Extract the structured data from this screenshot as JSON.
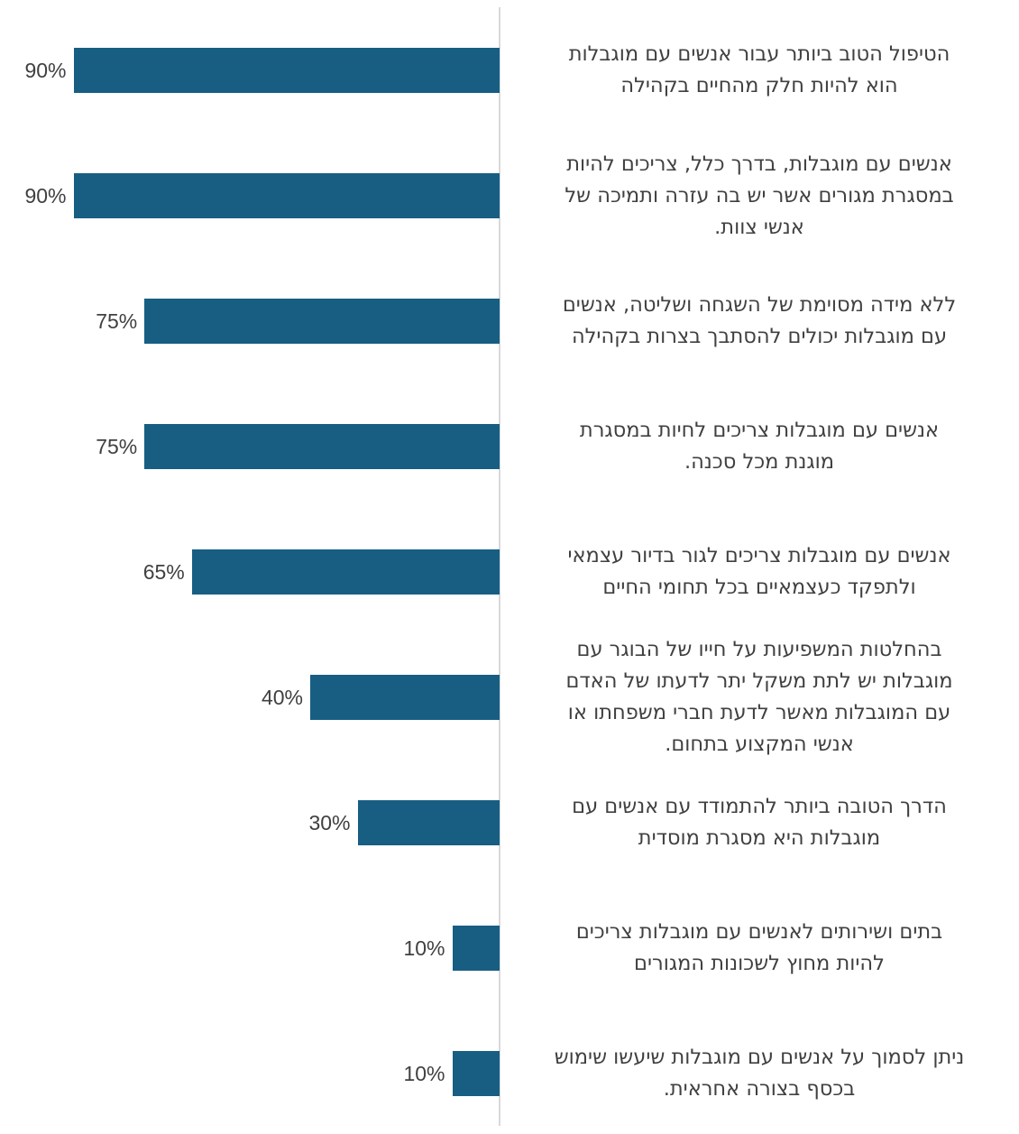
{
  "chart_data": {
    "type": "bar",
    "orientation": "horizontal",
    "direction": "rtl",
    "categories": [
      "הטיפול הטוב ביותר עבור אנשים עם מוגבלות הוא להיות חלק מהחיים בקהילה",
      "אנשים עם מוגבלות, בדרך כלל, צריכים להיות במסגרת מגורים אשר יש בה עזרה ותמיכה של אנשי צוות.",
      "ללא מידה מסוימת של השגחה ושליטה, אנשים עם מוגבלות יכולים להסתבך בצרות בקהילה",
      "אנשים עם מוגבלות צריכים לחיות במסגרת מוגנת מכל סכנה.",
      "אנשים עם מוגבלות צריכים לגור בדיור עצמאי ולתפקד כעצמאיים בכל תחומי החיים",
      "בהחלטות המשפיעות על חייו של הבוגר עם מוגבלות יש לתת משקל יתר לדעתו של האדם עם המוגבלות מאשר לדעת חברי משפחתו או אנשי המקצוע בתחום.",
      "הדרך הטובה ביותר להתמודד עם אנשים עם מוגבלות היא מסגרת מוסדית",
      "בתים ושירותים לאנשים עם מוגבלות צריכים להיות מחוץ לשכונות המגורים",
      "ניתן לסמוך על אנשים עם מוגבלות שיעשו שימוש בכסף בצורה אחראית."
    ],
    "category_lines": [
      [
        "הטיפול הטוב ביותר עבור אנשים עם מוגבלות",
        "הוא להיות חלק מהחיים בקהילה"
      ],
      [
        "אנשים עם מוגבלות, בדרך כלל, צריכים להיות",
        "במסגרת מגורים אשר יש בה עזרה ותמיכה של",
        "אנשי צוות."
      ],
      [
        "ללא מידה מסוימת של השגחה ושליטה, אנשים",
        "עם מוגבלות יכולים להסתבך בצרות בקהילה"
      ],
      [
        "אנשים עם מוגבלות צריכים לחיות במסגרת",
        "מוגנת מכל סכנה."
      ],
      [
        "אנשים עם מוגבלות צריכים לגור בדיור עצמאי",
        "ולתפקד כעצמאיים בכל תחומי החיים"
      ],
      [
        "בהחלטות המשפיעות על חייו של הבוגר עם",
        "מוגבלות יש לתת משקל יתר לדעתו של האדם",
        "עם המוגבלות מאשר לדעת חברי משפחתו או",
        "אנשי המקצוע בתחום."
      ],
      [
        "הדרך הטובה ביותר להתמודד עם אנשים עם",
        "מוגבלות היא מסגרת מוסדית"
      ],
      [
        "בתים ושירותים לאנשים עם מוגבלות צריכים",
        "להיות מחוץ לשכונות המגורים"
      ],
      [
        "ניתן לסמוך על אנשים עם מוגבלות שיעשו שימוש",
        "בכסף בצורה אחראית."
      ]
    ],
    "values": [
      90,
      90,
      75,
      75,
      65,
      40,
      30,
      10,
      10
    ],
    "value_labels": [
      "90%",
      "90%",
      "75%",
      "75%",
      "65%",
      "40%",
      "30%",
      "10%",
      "10%"
    ],
    "xlim": [
      0,
      100
    ],
    "grid": false,
    "legend": "none",
    "bar_color": "#175e82",
    "title": "",
    "xlabel": "",
    "ylabel": ""
  }
}
